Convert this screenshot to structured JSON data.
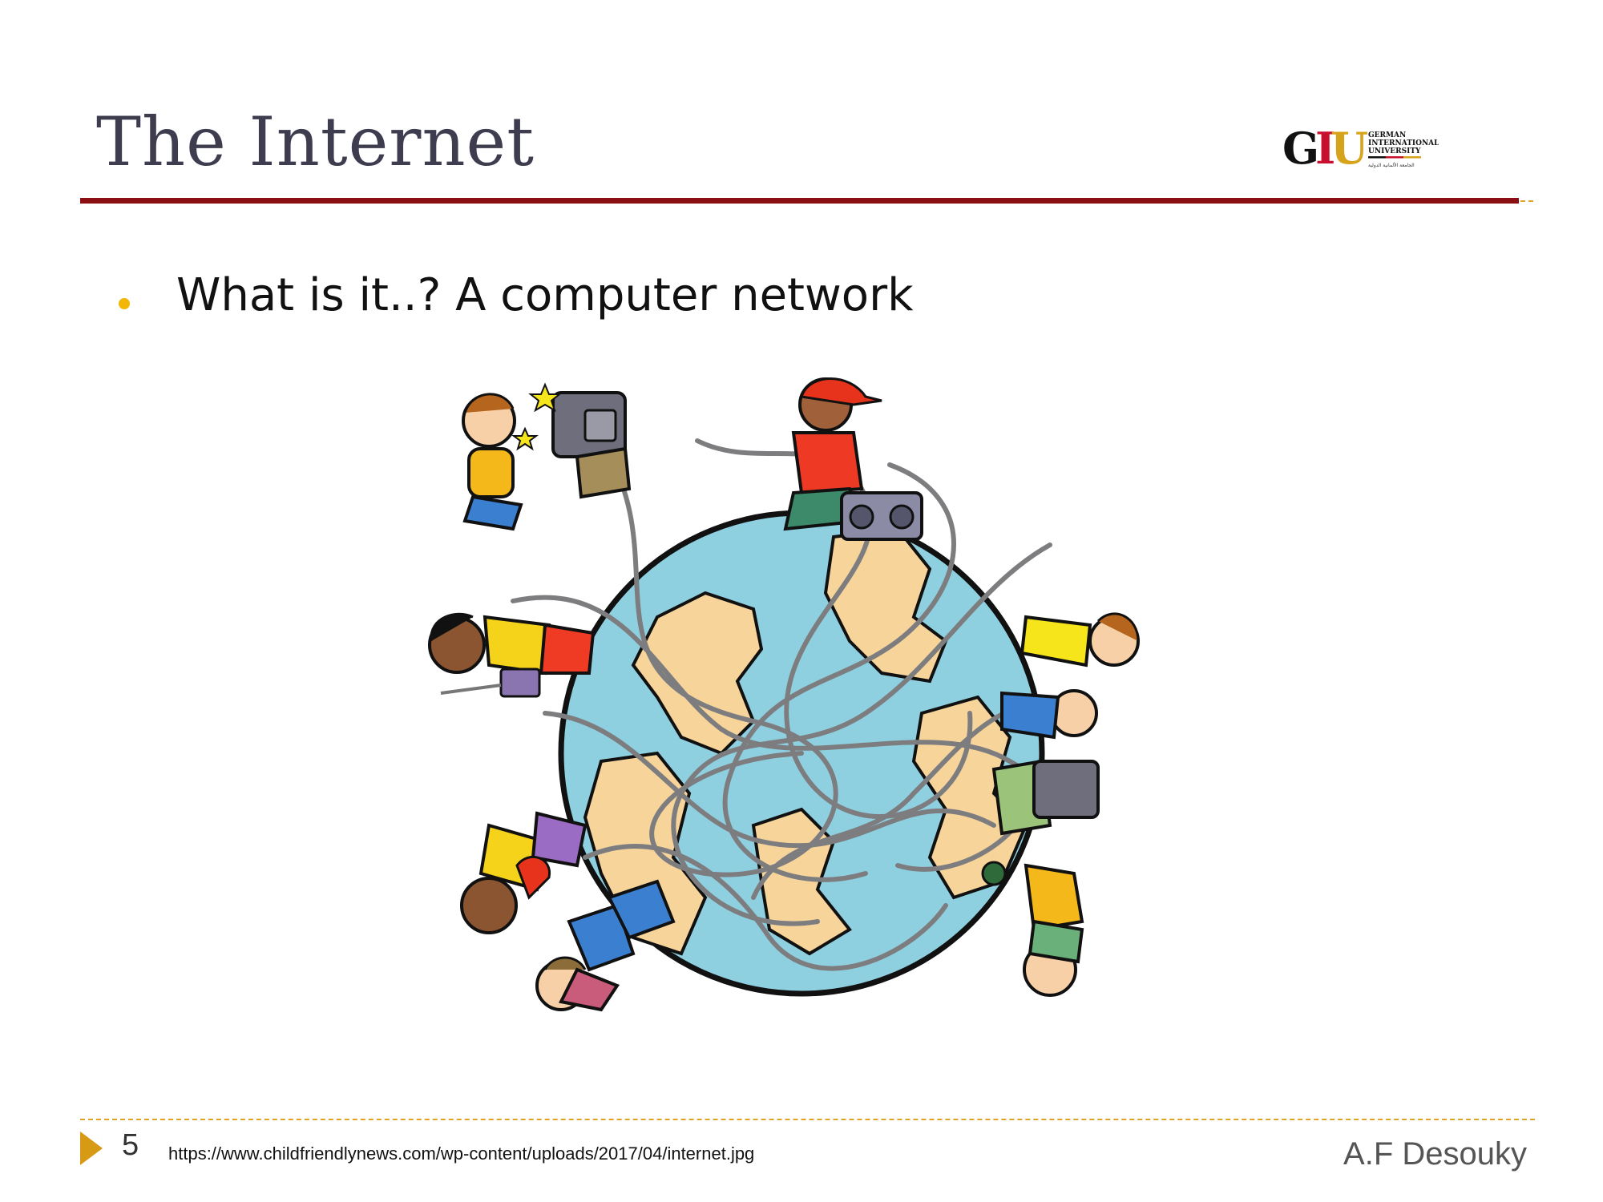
{
  "slide": {
    "title": "The Internet",
    "bullet": "What is it..? A computer network",
    "page_number": "5",
    "source_url": "https://www.childfriendlynews.com/wp-content/uploads/2017/04/internet.jpg",
    "author": "A.F Desouky"
  },
  "logo": {
    "mark_g": "G",
    "mark_i": "I",
    "mark_u": "U",
    "line1": "GERMAN",
    "line2": "INTERNATIONAL",
    "line3": "UNIVERSITY",
    "arabic": "الجامعة الألمانية الدولية"
  },
  "illustration": {
    "icon": "kids-around-globe-illustration"
  },
  "colors": {
    "title": "#3d3d4f",
    "title_rule": "#8b0f12",
    "accent": "#e0a323",
    "bullet": "#f2b705",
    "ocean": "#8fd0e0",
    "land": "#f6d49a"
  }
}
